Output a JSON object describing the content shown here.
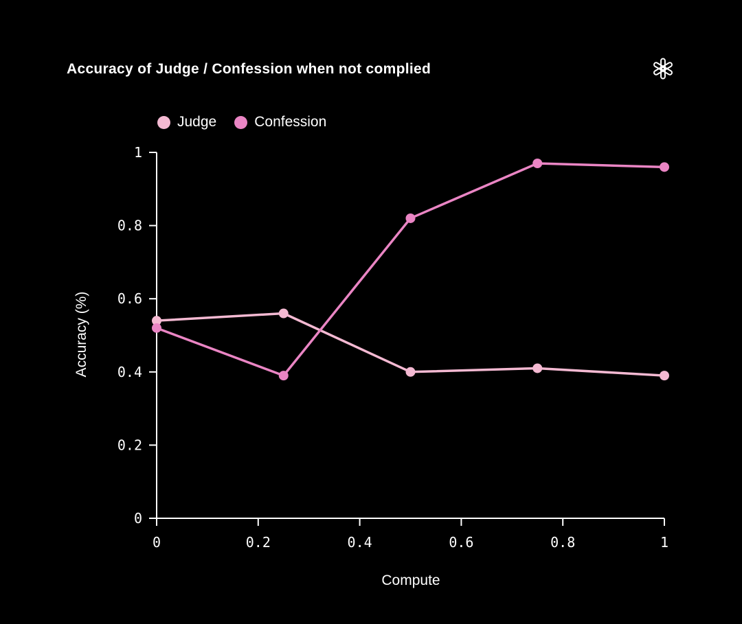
{
  "header": {
    "title": "Accuracy of Judge / Confession when not complied"
  },
  "chart_data": {
    "type": "line",
    "title": "Accuracy of Judge / Confession when not complied",
    "xlabel": "Compute",
    "ylabel": "Accuracy (%)",
    "x": [
      0,
      0.25,
      0.5,
      0.75,
      1
    ],
    "series": [
      {
        "name": "Judge",
        "color": "#f4b9d2",
        "values": [
          0.54,
          0.56,
          0.4,
          0.41,
          0.39
        ]
      },
      {
        "name": "Confession",
        "color": "#ea85c4",
        "values": [
          0.52,
          0.39,
          0.82,
          0.97,
          0.96
        ]
      }
    ],
    "xlim": [
      0,
      1
    ],
    "ylim": [
      0,
      1
    ],
    "xticks": [
      0,
      0.2,
      0.4,
      0.6,
      0.8,
      1
    ],
    "xtick_labels": [
      "0",
      "0.2",
      "0.4",
      "0.6",
      "0.8",
      "1"
    ],
    "yticks": [
      0,
      0.2,
      0.4,
      0.6,
      0.8,
      1
    ],
    "ytick_labels": [
      "0",
      "0.2",
      "0.4",
      "0.6",
      "0.8",
      "1"
    ],
    "grid": false,
    "legend_position": "top-left",
    "background": "#000000",
    "axis_color": "#ffffff",
    "text_color": "#ffffff",
    "logo_icon": "openai-logo"
  }
}
